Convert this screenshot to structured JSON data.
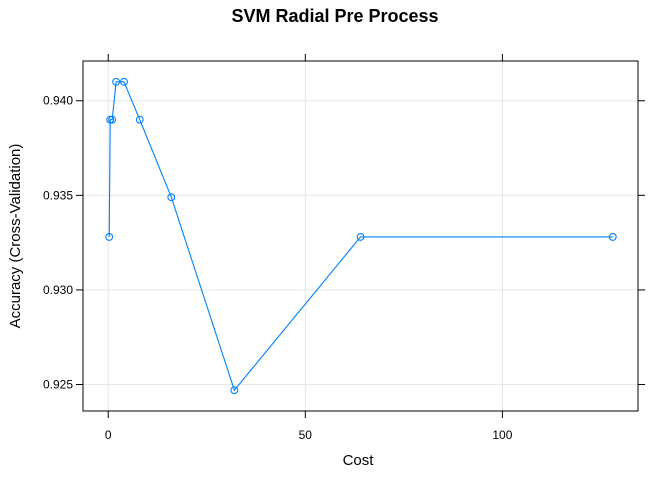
{
  "chart_data": {
    "type": "line",
    "title": "SVM Radial Pre Process",
    "xlabel": "Cost",
    "ylabel": "Accuracy (Cross-Validation)",
    "xlim": [
      -6.4,
      134.4
    ],
    "ylim": [
      0.9236,
      0.9421
    ],
    "x_ticks": [
      0,
      50,
      100
    ],
    "x_tick_labels": [
      "0",
      "50",
      "100"
    ],
    "y_ticks": [
      0.925,
      0.93,
      0.935,
      0.94
    ],
    "y_tick_labels": [
      "0.925",
      "0.930",
      "0.935",
      "0.940"
    ],
    "grid": true,
    "series_color": "#0080ff",
    "series": [
      {
        "x": [
          0.25,
          0.5,
          1,
          2,
          4,
          8,
          16,
          32,
          64,
          128
        ],
        "y": [
          0.9328,
          0.939,
          0.939,
          0.941,
          0.941,
          0.939,
          0.9349,
          0.9247,
          0.9328,
          0.9328
        ]
      }
    ]
  }
}
